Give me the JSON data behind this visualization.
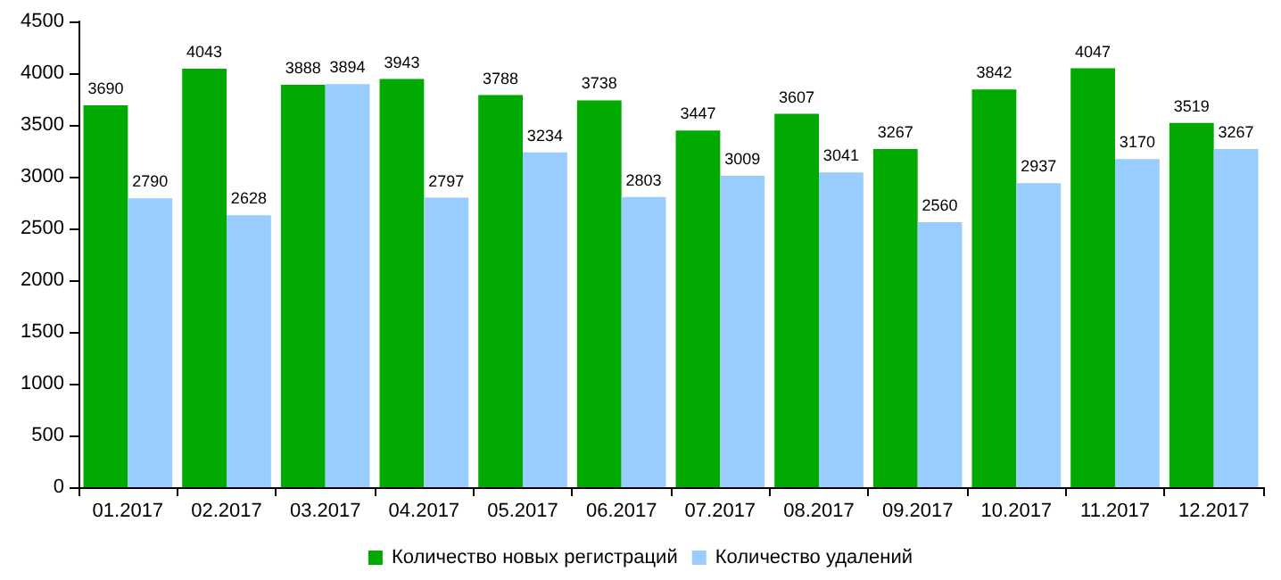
{
  "chart_data": {
    "type": "bar",
    "categories": [
      "01.2017",
      "02.2017",
      "03.2017",
      "04.2017",
      "05.2017",
      "06.2017",
      "07.2017",
      "08.2017",
      "09.2017",
      "10.2017",
      "11.2017",
      "12.2017"
    ],
    "series": [
      {
        "name": "Количество новых регистраций",
        "color": "#00aa00",
        "values": [
          3690,
          4043,
          3888,
          3943,
          3788,
          3738,
          3447,
          3607,
          3267,
          3842,
          4047,
          3519
        ]
      },
      {
        "name": "Количество удалений",
        "color": "#99ccff",
        "values": [
          2790,
          2628,
          3894,
          2797,
          3234,
          2803,
          3009,
          3041,
          2560,
          2937,
          3170,
          3267
        ]
      }
    ],
    "ylim": [
      0,
      4500
    ],
    "yticks": [
      0,
      500,
      1000,
      1500,
      2000,
      2500,
      3000,
      3500,
      4000,
      4500
    ],
    "grid": false,
    "legend": "bottom",
    "data_labels": true
  }
}
